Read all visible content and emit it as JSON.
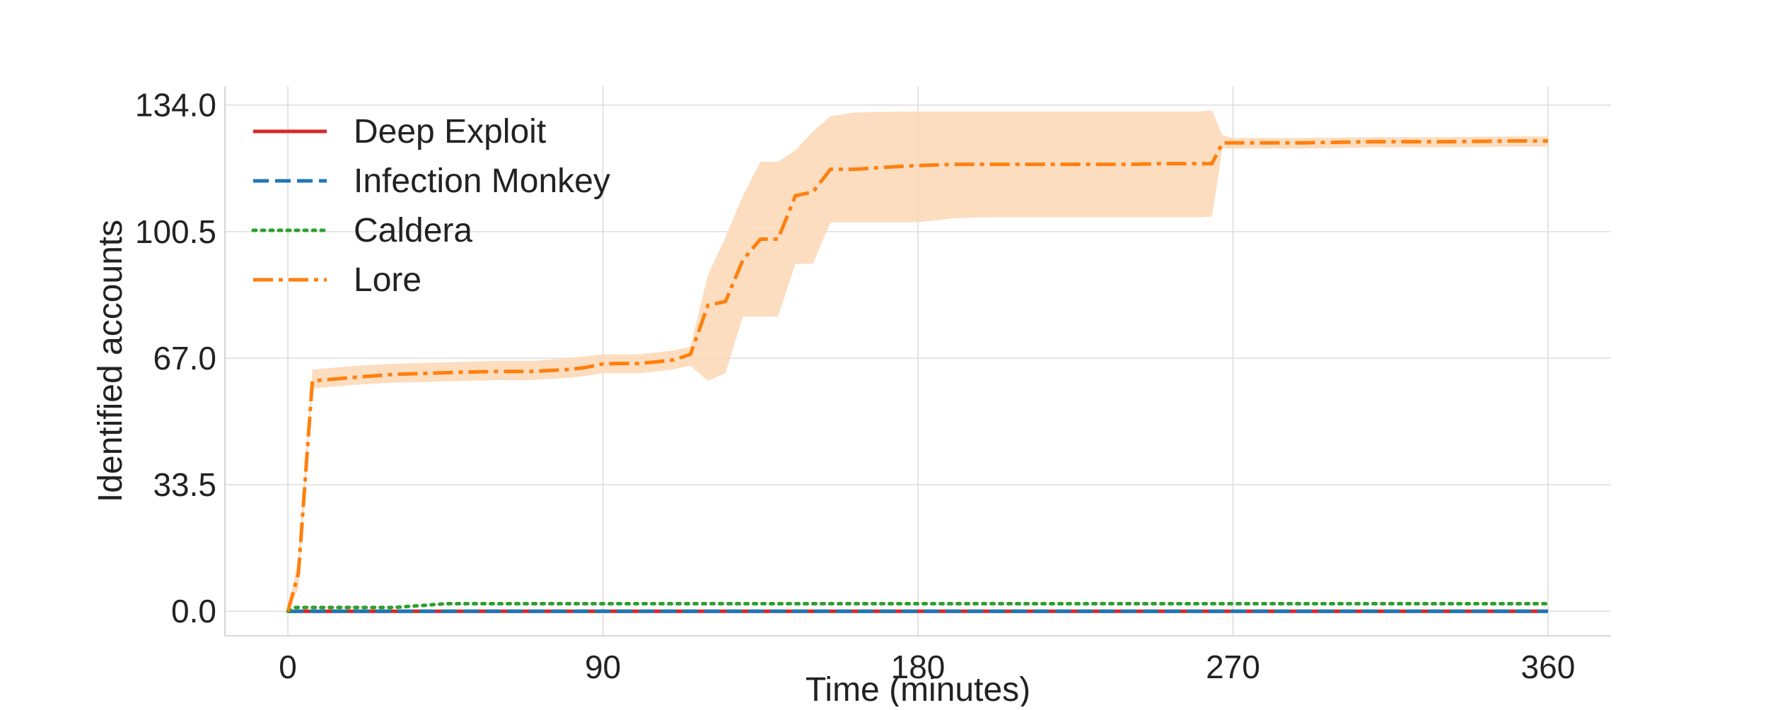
{
  "chart_data": {
    "type": "line",
    "title": "",
    "xlabel": "Time (minutes)",
    "ylabel": "Identified accounts",
    "xlim": [
      -18,
      378
    ],
    "ylim": [
      -6.5,
      139
    ],
    "xticks": [
      0,
      90,
      180,
      270,
      360
    ],
    "xtick_labels": [
      "0",
      "90",
      "180",
      "270",
      "360"
    ],
    "yticks": [
      0,
      33.5,
      67,
      100.5,
      134
    ],
    "ytick_labels": [
      "0.0",
      "33.5",
      "67.0",
      "100.5",
      "134.0"
    ],
    "grid": true,
    "legend_position": "top-left",
    "series": [
      {
        "name": "Deep Exploit",
        "color": "#d62728",
        "style": "solid",
        "x": [
          0,
          360
        ],
        "y": [
          0,
          0
        ]
      },
      {
        "name": "Infection Monkey",
        "color": "#1f77b4",
        "style": "dashed",
        "x": [
          0,
          360
        ],
        "y": [
          0,
          0
        ]
      },
      {
        "name": "Caldera",
        "color": "#2ca02c",
        "style": "dotted",
        "x": [
          0,
          2,
          30,
          38,
          45,
          360
        ],
        "y": [
          0,
          1,
          1,
          1.5,
          2,
          2
        ]
      },
      {
        "name": "Lore",
        "color": "#ff7f0e",
        "style": "dashdot",
        "x": [
          0,
          3,
          7,
          20,
          30,
          40,
          50,
          60,
          70,
          80,
          85,
          90,
          95,
          100,
          105,
          110,
          115,
          120,
          125,
          130,
          135,
          140,
          145,
          150,
          155,
          160,
          162,
          170,
          180,
          190,
          200,
          210,
          220,
          230,
          240,
          250,
          260,
          264,
          267,
          270,
          290,
          310,
          330,
          350,
          360
        ],
        "y": [
          0,
          10,
          61,
          62,
          62.7,
          63,
          63.3,
          63.5,
          63.5,
          64,
          64.5,
          65.5,
          65.6,
          65.6,
          66,
          66.5,
          68,
          81,
          82,
          93,
          98.5,
          98.5,
          110,
          111,
          117,
          117,
          117,
          117.5,
          118,
          118.3,
          118.3,
          118.3,
          118.3,
          118.3,
          118.3,
          118.5,
          118.5,
          118.5,
          124,
          124,
          124,
          124.3,
          124.3,
          124.5,
          124.5
        ],
        "band_upper": [
          0,
          14,
          64,
          65,
          65.5,
          65.8,
          66,
          66.3,
          66.3,
          67,
          67.5,
          68,
          68,
          68,
          68.5,
          69,
          70,
          89,
          99,
          110,
          119,
          119,
          122,
          127,
          131,
          131.8,
          132,
          132.2,
          132.3,
          132.3,
          132.3,
          132.3,
          132.3,
          132.3,
          132.3,
          132.3,
          132.3,
          132.6,
          126,
          125.3,
          125.3,
          125.5,
          125.5,
          125.7,
          125.7
        ],
        "band_lower": [
          0,
          6,
          59,
          60,
          60.5,
          60.7,
          61,
          61.2,
          61.2,
          61.8,
          62.3,
          63,
          63,
          63,
          63.5,
          64,
          65,
          61,
          63,
          78,
          78,
          78,
          92,
          92,
          103,
          103,
          103,
          103,
          103,
          104,
          104.3,
          104.3,
          104.3,
          104.3,
          104.3,
          104.3,
          104.3,
          104.5,
          122.5,
          122.5,
          122.5,
          122.8,
          122.8,
          123,
          123
        ],
        "band_color": "#fdd9b8"
      }
    ]
  }
}
